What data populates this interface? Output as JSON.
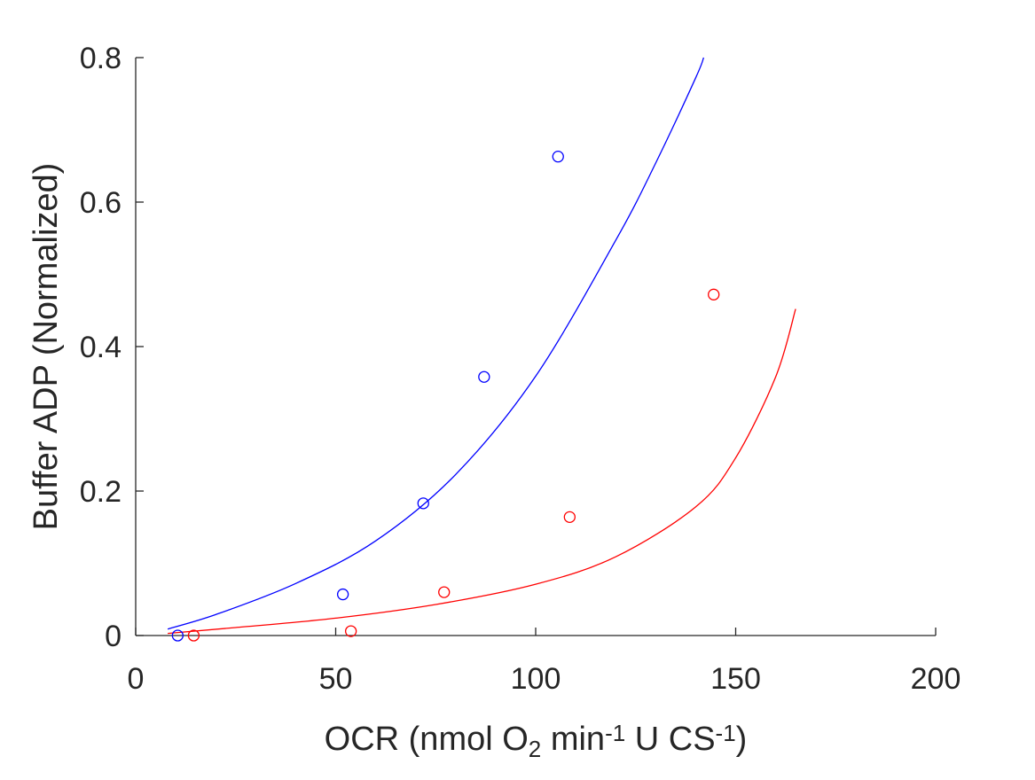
{
  "chart_data": {
    "type": "scatter",
    "title": "",
    "xlabel": {
      "parts": [
        {
          "text": "OCR (nmol O",
          "style": "normal"
        },
        {
          "text": "2",
          "style": "sub"
        },
        {
          "text": " min",
          "style": "normal"
        },
        {
          "text": "-1",
          "style": "sup"
        },
        {
          "text": " U CS",
          "style": "normal"
        },
        {
          "text": "-1",
          "style": "sup"
        },
        {
          "text": ")",
          "style": "normal"
        }
      ]
    },
    "ylabel": "Buffer ADP (Normalized)",
    "xlim": [
      0,
      200
    ],
    "ylim": [
      0,
      0.8
    ],
    "xticks": [
      0,
      50,
      100,
      150,
      200
    ],
    "xtick_labels": [
      "0",
      "50",
      "100",
      "150",
      "200"
    ],
    "yticks": [
      0,
      0.2,
      0.4,
      0.6,
      0.8
    ],
    "ytick_labels": [
      "0",
      "0.2",
      "0.4",
      "0.6",
      "0.8"
    ],
    "grid": false,
    "legend": "none",
    "series": [
      {
        "color": "#0000ff",
        "marker": "circle",
        "points": [
          {
            "x": 10.5,
            "y": 0.0
          },
          {
            "x": 51.8,
            "y": 0.057
          },
          {
            "x": 71.9,
            "y": 0.183
          },
          {
            "x": 87.1,
            "y": 0.358
          },
          {
            "x": 105.6,
            "y": 0.663
          }
        ],
        "fit": {
          "x": [
            8,
            20,
            40,
            60,
            80,
            100,
            120,
            130,
            140,
            142
          ],
          "y": [
            0.009,
            0.029,
            0.072,
            0.131,
            0.223,
            0.359,
            0.547,
            0.654,
            0.772,
            0.8
          ]
        }
      },
      {
        "color": "#ff0000",
        "marker": "circle",
        "points": [
          {
            "x": 14.5,
            "y": 0.0
          },
          {
            "x": 53.8,
            "y": 0.006
          },
          {
            "x": 77.1,
            "y": 0.06
          },
          {
            "x": 108.5,
            "y": 0.164
          },
          {
            "x": 144.5,
            "y": 0.472
          }
        ],
        "fit": {
          "x": [
            8,
            25,
            50,
            75,
            100,
            120,
            140,
            150,
            160,
            165
          ],
          "y": [
            0.003,
            0.011,
            0.024,
            0.043,
            0.071,
            0.109,
            0.178,
            0.246,
            0.358,
            0.452
          ]
        }
      }
    ]
  }
}
